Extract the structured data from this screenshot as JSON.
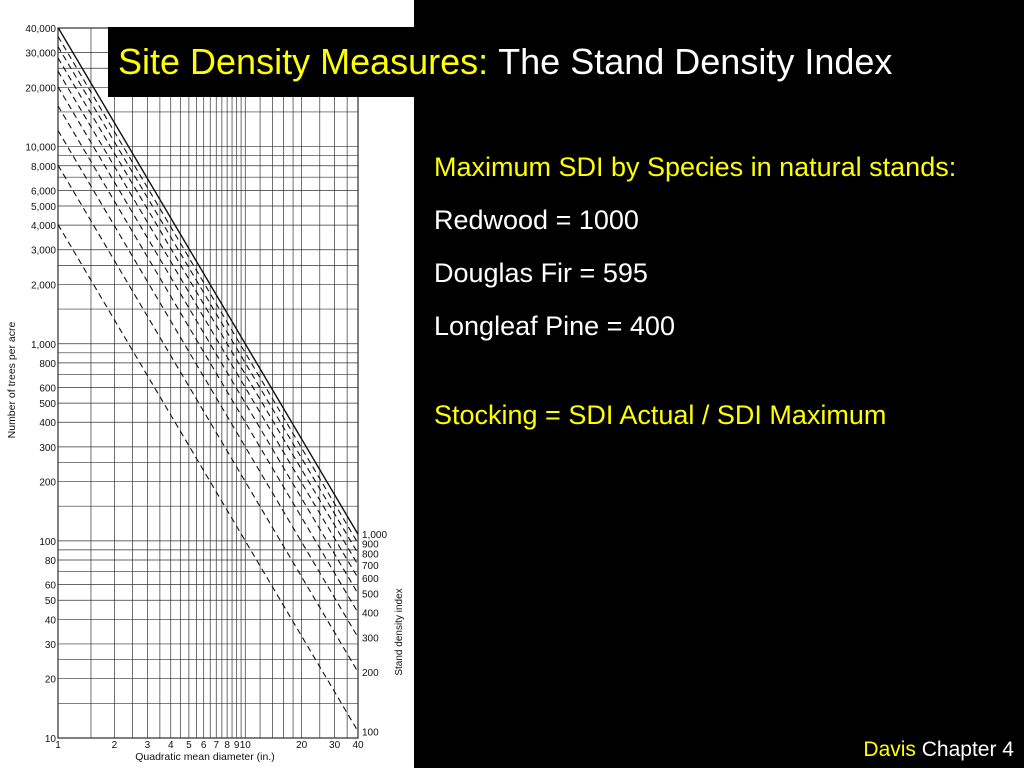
{
  "slide": {
    "title_part1": "Site Density Measures:",
    "title_part2": "The Stand Density Index",
    "heading": "Maximum SDI by Species in natural stands:",
    "items": [
      "Redwood = 1000",
      "Douglas Fir = 595",
      "Longleaf Pine = 400"
    ],
    "formula": "Stocking = SDI Actual / SDI Maximum",
    "footer_author": "Davis",
    "footer_chapter": "Chapter 4"
  },
  "colors": {
    "background": "#000000",
    "accent_yellow": "#ffff00",
    "text_white": "#ffffff"
  },
  "chart_data": {
    "type": "line",
    "x_scale": "log",
    "y_scale": "log",
    "xlabel": "Quadratic mean diameter (in.)",
    "ylabel": "Number of trees per acre",
    "right_label": "Stand density index",
    "xlim": [
      1,
      40
    ],
    "ylim": [
      10,
      40000
    ],
    "x_ticks": [
      1,
      2,
      3,
      4,
      5,
      6,
      7,
      8,
      9,
      10,
      20,
      30,
      40
    ],
    "x_tick_labels": [
      "1",
      "2",
      "3",
      "4",
      "5",
      "6",
      "7",
      "8",
      "9",
      "10",
      "20",
      "30",
      "40"
    ],
    "y_ticks": [
      10,
      20,
      30,
      40,
      50,
      60,
      80,
      100,
      200,
      300,
      400,
      500,
      600,
      800,
      1000,
      2000,
      3000,
      4000,
      5000,
      6000,
      8000,
      10000,
      20000,
      30000,
      40000
    ],
    "y_tick_labels": [
      "10",
      "20",
      "30",
      "40",
      "50",
      "60",
      "80",
      "100",
      "200",
      "300",
      "400",
      "500",
      "600",
      "800",
      "1,000",
      "2,000",
      "3,000",
      "4,000",
      "5,000",
      "6,000",
      "8,000",
      "10,000",
      "20,000",
      "30,000",
      "40,000"
    ],
    "slope": -1.605,
    "reference_diameter": 10,
    "sdi_lines": [
      {
        "sdi": 1000,
        "label": "1,000",
        "style": "solid"
      },
      {
        "sdi": 900,
        "label": "900",
        "style": "dashed"
      },
      {
        "sdi": 800,
        "label": "800",
        "style": "dashed"
      },
      {
        "sdi": 700,
        "label": "700",
        "style": "dashed"
      },
      {
        "sdi": 600,
        "label": "600",
        "style": "dashed"
      },
      {
        "sdi": 500,
        "label": "500",
        "style": "dashed"
      },
      {
        "sdi": 400,
        "label": "400",
        "style": "dashed"
      },
      {
        "sdi": 300,
        "label": "300",
        "style": "dashed"
      },
      {
        "sdi": 200,
        "label": "200",
        "style": "dashed"
      },
      {
        "sdi": 100,
        "label": "100",
        "style": "dashed"
      }
    ],
    "grid": true
  }
}
